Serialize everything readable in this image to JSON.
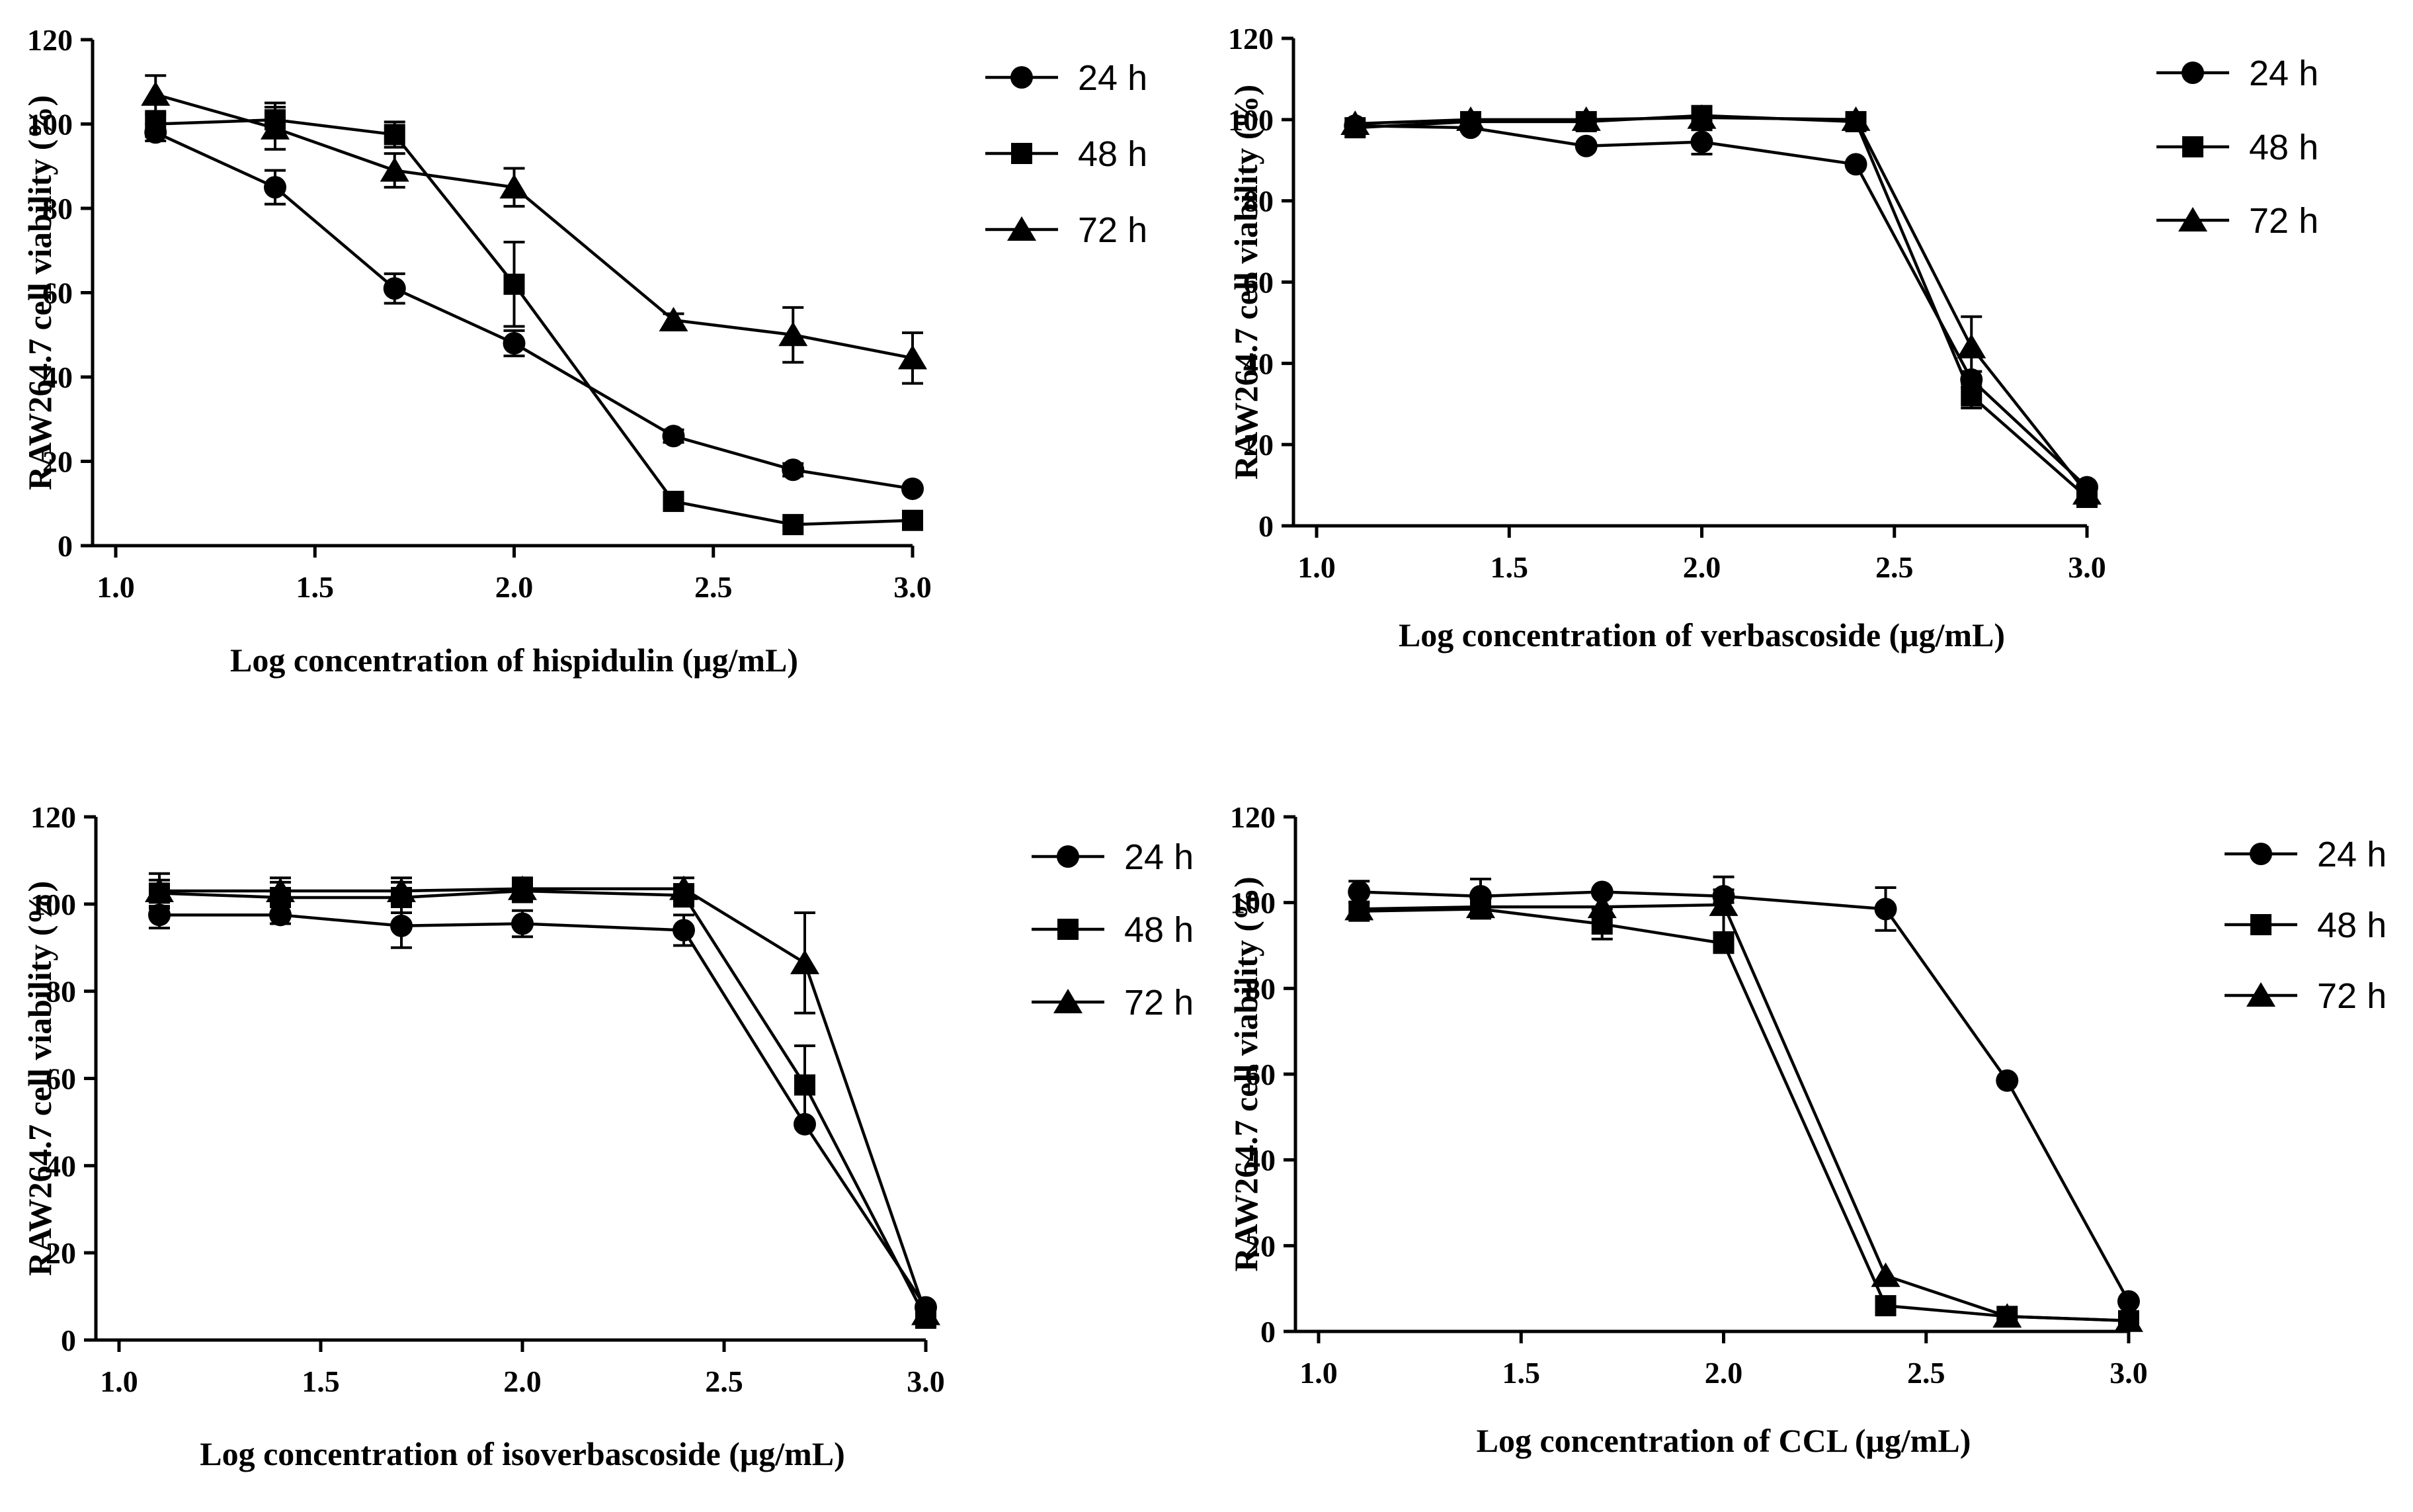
{
  "chart_data": [
    {
      "type": "line",
      "xlabel": "Log concentration of hispidulin (μg/mL)",
      "ylabel": "RAW264.7 cell viability (%)",
      "xlim": [
        1.0,
        3.0
      ],
      "ylim": [
        0,
        120
      ],
      "xticks": [
        "1.0",
        "1.5",
        "2.0",
        "2.5",
        "3.0"
      ],
      "yticks": [
        "0",
        "20",
        "40",
        "60",
        "80",
        "100",
        "120"
      ],
      "legend_position": "right",
      "x": [
        1.1,
        1.4,
        1.7,
        2.0,
        2.4,
        2.7,
        3.0
      ],
      "series": [
        {
          "name": "24 h",
          "marker": "circle",
          "values": [
            98,
            85,
            61,
            48,
            26,
            18,
            13.5
          ],
          "errors": [
            2,
            4,
            3.5,
            3,
            1.5,
            1.5,
            1
          ]
        },
        {
          "name": "48 h",
          "marker": "square",
          "values": [
            100,
            101,
            97.5,
            62,
            10.5,
            5,
            6
          ],
          "errors": [
            3,
            4,
            3,
            10,
            1,
            1,
            1
          ]
        },
        {
          "name": "72 h",
          "marker": "triangle",
          "values": [
            107,
            99,
            89,
            85,
            53.5,
            50,
            44.5
          ],
          "errors": [
            4.5,
            5,
            4,
            4.5,
            1.5,
            6.5,
            6
          ]
        }
      ]
    },
    {
      "type": "line",
      "xlabel": "Log concentration of verbascoside (μg/mL)",
      "ylabel": "RAW264.7 cell viability (%)",
      "xlim": [
        1.0,
        3.0
      ],
      "ylim": [
        0,
        120
      ],
      "xticks": [
        "1.0",
        "1.5",
        "2.0",
        "2.5",
        "3.0"
      ],
      "yticks": [
        "0",
        "20",
        "40",
        "60",
        "80",
        "100",
        "120"
      ],
      "legend_position": "right",
      "x": [
        1.1,
        1.4,
        1.7,
        2.0,
        2.4,
        2.7,
        3.0
      ],
      "series": [
        {
          "name": "24 h",
          "marker": "circle",
          "values": [
            98.5,
            98,
            93.5,
            94.5,
            89,
            36,
            9.5
          ],
          "errors": [
            1,
            1,
            1,
            3,
            1,
            2,
            1
          ]
        },
        {
          "name": "48 h",
          "marker": "square",
          "values": [
            98,
            99.5,
            99.5,
            101,
            99.5,
            32,
            7
          ],
          "errors": [
            1,
            1,
            1,
            1.5,
            1,
            3,
            1
          ]
        },
        {
          "name": "72 h",
          "marker": "triangle",
          "values": [
            99,
            100,
            100,
            100.5,
            100,
            44,
            8
          ],
          "errors": [
            1,
            1,
            1,
            1,
            1,
            7.5,
            1
          ]
        }
      ]
    },
    {
      "type": "line",
      "xlabel": "Log concentration of isoverbascoside (μg/mL)",
      "ylabel": "RAW264.7 cell viability (%)",
      "xlim": [
        1.0,
        3.0
      ],
      "ylim": [
        0,
        120
      ],
      "xticks": [
        "1.0",
        "1.5",
        "2.0",
        "2.5",
        "3.0"
      ],
      "yticks": [
        "0",
        "20",
        "40",
        "60",
        "80",
        "100",
        "120"
      ],
      "legend_position": "right",
      "x": [
        1.1,
        1.4,
        1.7,
        2.0,
        2.4,
        2.7,
        3.0
      ],
      "series": [
        {
          "name": "24 h",
          "marker": "circle",
          "values": [
            97.5,
            97.5,
            95,
            95.5,
            94,
            49.5,
            7.5
          ],
          "errors": [
            3,
            2,
            5,
            3,
            3.5,
            1,
            1
          ]
        },
        {
          "name": "48 h",
          "marker": "square",
          "values": [
            102.5,
            101.5,
            101.5,
            103,
            102,
            58.5,
            5
          ],
          "errors": [
            3,
            3.5,
            3.5,
            2.5,
            2.5,
            9,
            1
          ]
        },
        {
          "name": "72 h",
          "marker": "triangle",
          "values": [
            103,
            103,
            103,
            103.5,
            103.5,
            86.5,
            6
          ],
          "errors": [
            4,
            3,
            3,
            2.5,
            2.5,
            11.5,
            1
          ]
        }
      ]
    },
    {
      "type": "line",
      "xlabel": "Log concentration of CCL (μg/mL)",
      "ylabel": "RAW264.7 cell viability (%)",
      "xlim": [
        1.0,
        3.0
      ],
      "ylim": [
        0,
        120
      ],
      "xticks": [
        "1.0",
        "1.5",
        "2.0",
        "2.5",
        "3.0"
      ],
      "yticks": [
        "0",
        "20",
        "40",
        "60",
        "80",
        "100",
        "120"
      ],
      "legend_position": "right",
      "x": [
        1.1,
        1.4,
        1.7,
        2.0,
        2.4,
        2.7,
        3.0
      ],
      "series": [
        {
          "name": "24 h",
          "marker": "circle",
          "values": [
            102.5,
            101.5,
            102.5,
            101.5,
            98.5,
            58.5,
            7
          ],
          "errors": [
            2.5,
            4,
            1,
            1.5,
            5,
            1,
            1
          ]
        },
        {
          "name": "48 h",
          "marker": "square",
          "values": [
            98,
            98.5,
            95,
            90.5,
            6,
            3.5,
            2.5
          ],
          "errors": [
            1,
            1,
            3.5,
            1,
            1,
            1,
            1
          ]
        },
        {
          "name": "72 h",
          "marker": "triangle",
          "values": [
            98.5,
            99,
            99,
            99.5,
            13,
            3.5,
            2.5
          ],
          "errors": [
            1,
            1,
            1,
            6.5,
            1,
            1,
            1
          ]
        }
      ]
    }
  ]
}
